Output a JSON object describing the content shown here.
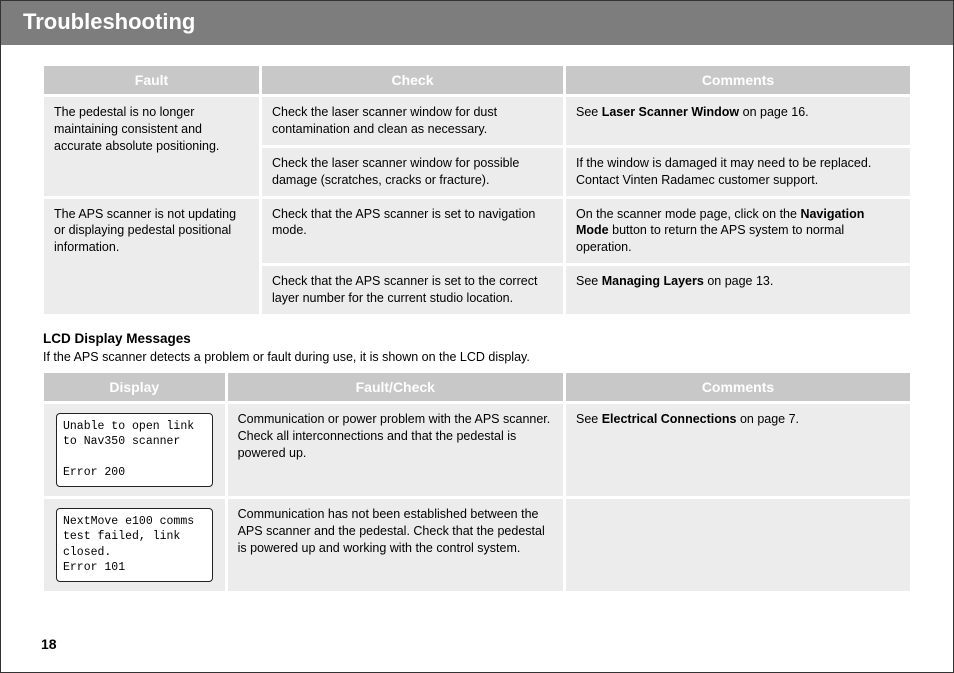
{
  "header": {
    "title": "Troubleshooting"
  },
  "table1": {
    "headers": {
      "fault": "Fault",
      "check": "Check",
      "comments": "Comments"
    },
    "rows": [
      {
        "fault": "The pedestal is no longer maintaining consistent and accurate absolute positioning.",
        "check": "Check the laser scanner window for dust contamination and clean as necessary.",
        "comments_pre": "See ",
        "comments_bold": "Laser Scanner Window",
        "comments_post": " on page 16."
      },
      {
        "fault": "",
        "check": "Check the laser scanner window for possible damage (scratches, cracks or fracture).",
        "comments_pre": "If the window is damaged it may need to be replaced. Contact Vinten Radamec customer support.",
        "comments_bold": "",
        "comments_post": ""
      },
      {
        "fault": "The APS scanner is not updating or displaying pedestal positional information.",
        "check": "Check that the APS scanner is set to navigation mode.",
        "comments_pre": "On the scanner mode page, click on the ",
        "comments_bold": "Navigation Mode",
        "comments_post": " button to return the APS system to normal operation."
      },
      {
        "fault": "",
        "check": "Check that the APS scanner is set to the correct layer number for the current studio location.",
        "comments_pre": "See ",
        "comments_bold": "Managing Layers",
        "comments_post": " on page 13."
      }
    ]
  },
  "section2": {
    "title": "LCD Display Messages",
    "desc": "If the APS scanner detects a problem or fault during use, it is shown on the LCD display."
  },
  "table2": {
    "headers": {
      "display": "Display",
      "fault": "Fault/Check",
      "comments": "Comments"
    },
    "rows": [
      {
        "lcd_l1": "Unable to open link",
        "lcd_l2": "to Nav350 scanner",
        "lcd_l3": "",
        "lcd_l4": "Error 200",
        "check": "Communication or power problem with the APS scanner. Check all interconnections and that the pedestal is powered up.",
        "comments_pre": "See ",
        "comments_bold": "Electrical Connections",
        "comments_post": " on page 7."
      },
      {
        "lcd_l1": "NextMove e100 comms",
        "lcd_l2": "test failed, link",
        "lcd_l3": "closed.",
        "lcd_l4": "Error 101",
        "check": "Communication has not been established between the APS scanner and the pedestal. Check that the pedestal is powered up and working with the control system.",
        "comments_pre": "",
        "comments_bold": "",
        "comments_post": ""
      }
    ]
  },
  "page_number": "18"
}
